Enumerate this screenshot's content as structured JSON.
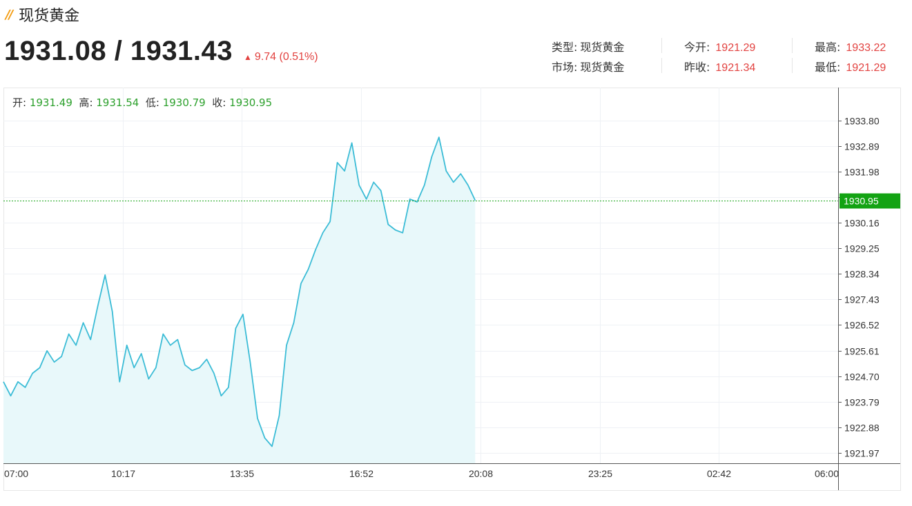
{
  "header": {
    "icon": "double-slash-icon",
    "title": "现货黄金"
  },
  "quote": {
    "price": "1931.08 / 1931.43",
    "change": "9.74 (0.51%)",
    "change_direction": "up"
  },
  "info": {
    "type_label": "类型:",
    "type_value": "现货黄金",
    "market_label": "市场:",
    "market_value": "现货黄金",
    "open_label": "今开:",
    "open_value": "1921.29",
    "prev_close_label": "昨收:",
    "prev_close_value": "1921.34",
    "high_label": "最高:",
    "high_value": "1933.22",
    "low_label": "最低:",
    "low_value": "1921.29"
  },
  "colors": {
    "accent_up": "#e2413f",
    "line": "#3bbcd6",
    "fill": "#e8f8fa",
    "ohlc_value": "#2ca02c",
    "current_tag": "#13a313"
  },
  "chart_data": {
    "type": "area",
    "ohlc": {
      "open_label": "开",
      "open": "1931.49",
      "high_label": "高",
      "high": "1931.54",
      "low_label": "低",
      "low": "1930.79",
      "close_label": "收",
      "close": "1930.95"
    },
    "x_ticks": [
      "07:00",
      "10:17",
      "13:35",
      "16:52",
      "20:08",
      "23:25",
      "02:42",
      "06:00"
    ],
    "y_ticks": [
      "1933.80",
      "1932.89",
      "1931.98",
      "1931.07",
      "1930.16",
      "1929.25",
      "1928.34",
      "1927.43",
      "1926.52",
      "1925.61",
      "1924.70",
      "1923.79",
      "1922.88",
      "1921.97"
    ],
    "y_range": [
      1921.6,
      1934.65
    ],
    "x_range_hours": [
      0,
      23
    ],
    "current_value": 1930.95,
    "current_label": "1930.95",
    "series": [
      {
        "x": [
          0,
          0.2,
          0.4,
          0.6,
          0.8,
          1.0,
          1.2,
          1.4,
          1.6,
          1.8,
          2.0,
          2.2,
          2.4,
          2.6,
          2.8,
          3.0,
          3.2,
          3.4,
          3.6,
          3.8,
          4.0,
          4.2,
          4.4,
          4.6,
          4.8,
          5.0,
          5.2,
          5.4,
          5.6,
          5.8,
          6.0,
          6.2,
          6.4,
          6.6,
          6.8,
          7.0,
          7.2,
          7.4,
          7.6,
          7.8,
          8.0,
          8.2,
          8.4,
          8.6,
          8.8,
          9.0,
          9.2,
          9.4,
          9.6,
          9.8,
          10.0,
          10.2,
          10.4,
          10.6,
          10.8,
          11.0,
          11.2,
          11.4,
          11.6,
          11.8,
          12.0,
          12.2,
          12.4,
          12.6,
          12.8,
          13.0
        ],
        "y": [
          1924.5,
          1924.0,
          1924.5,
          1924.3,
          1924.8,
          1925.0,
          1925.6,
          1925.2,
          1925.4,
          1926.2,
          1925.8,
          1926.6,
          1926.0,
          1927.2,
          1928.3,
          1927.0,
          1924.5,
          1925.8,
          1925.0,
          1925.5,
          1924.6,
          1925.0,
          1926.2,
          1925.8,
          1926.0,
          1925.1,
          1924.9,
          1925.0,
          1925.3,
          1924.8,
          1924.0,
          1924.3,
          1926.4,
          1926.9,
          1925.2,
          1923.2,
          1922.5,
          1922.2,
          1923.3,
          1925.8,
          1926.6,
          1928.0,
          1928.5,
          1929.2,
          1929.8,
          1930.2,
          1932.3,
          1932.0,
          1933.0,
          1931.5,
          1931.0,
          1931.6,
          1931.3,
          1930.1,
          1929.9,
          1929.8,
          1931.0,
          1930.9,
          1931.5,
          1932.5,
          1933.2,
          1932.0,
          1931.6,
          1931.9,
          1931.5,
          1930.95
        ]
      }
    ]
  }
}
